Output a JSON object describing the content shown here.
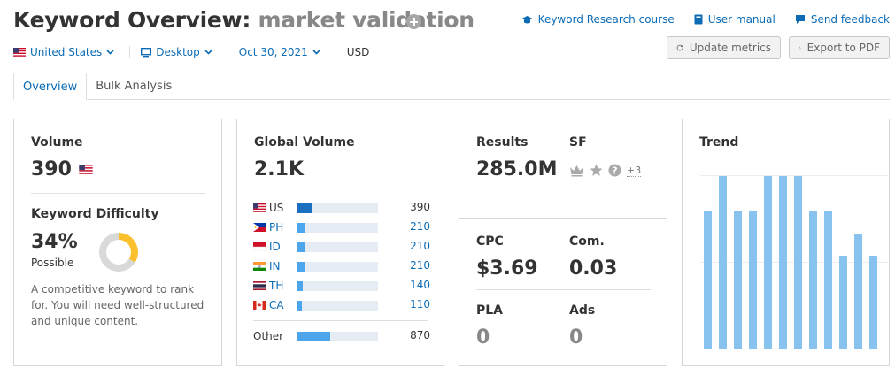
{
  "header": {
    "title_prefix": "Keyword Overview:",
    "keyword": "market validation",
    "filters": {
      "country": "United States",
      "device": "Desktop",
      "date": "Oct 30, 2021",
      "currency": "USD"
    },
    "links": {
      "course": "Keyword Research course",
      "manual": "User manual",
      "feedback": "Send feedback"
    },
    "buttons": {
      "update": "Update metrics",
      "export": "Export to PDF"
    }
  },
  "tabs": [
    "Overview",
    "Bulk Analysis"
  ],
  "volume": {
    "label": "Volume",
    "value": "390"
  },
  "difficulty": {
    "label": "Keyword Difficulty",
    "value": "34%",
    "level": "Possible",
    "percent": 34,
    "description": "A competitive keyword to rank for. You will need well-structured and unique content."
  },
  "global": {
    "label": "Global Volume",
    "value": "2.1K",
    "countries": [
      {
        "code": "US",
        "count": "390",
        "fraction": 0.18,
        "highlight": true
      },
      {
        "code": "PH",
        "count": "210",
        "fraction": 0.1,
        "highlight": false
      },
      {
        "code": "ID",
        "count": "210",
        "fraction": 0.1,
        "highlight": false
      },
      {
        "code": "IN",
        "count": "210",
        "fraction": 0.1,
        "highlight": false
      },
      {
        "code": "TH",
        "count": "140",
        "fraction": 0.067,
        "highlight": false
      },
      {
        "code": "CA",
        "count": "110",
        "fraction": 0.052,
        "highlight": false
      }
    ],
    "other": {
      "label": "Other",
      "count": "870",
      "fraction": 0.41
    }
  },
  "results": {
    "label": "Results",
    "value": "285.0M",
    "sf_label": "SF",
    "sf_more": "+3"
  },
  "cpc": {
    "cpc_label": "CPC",
    "cpc_value": "$3.69",
    "com_label": "Com.",
    "com_value": "0.03",
    "pla_label": "PLA",
    "pla_value": "0",
    "ads_label": "Ads",
    "ads_value": "0"
  },
  "trend": {
    "label": "Trend",
    "values": [
      0.8,
      1.0,
      0.8,
      0.8,
      1.0,
      1.0,
      1.0,
      0.8,
      0.8,
      0.54,
      0.67,
      0.54
    ]
  },
  "colors": {
    "link": "#0b6bb5",
    "bar": "#4da6ec",
    "trend": "#87c3ee",
    "difficulty": "#fbc02d"
  }
}
